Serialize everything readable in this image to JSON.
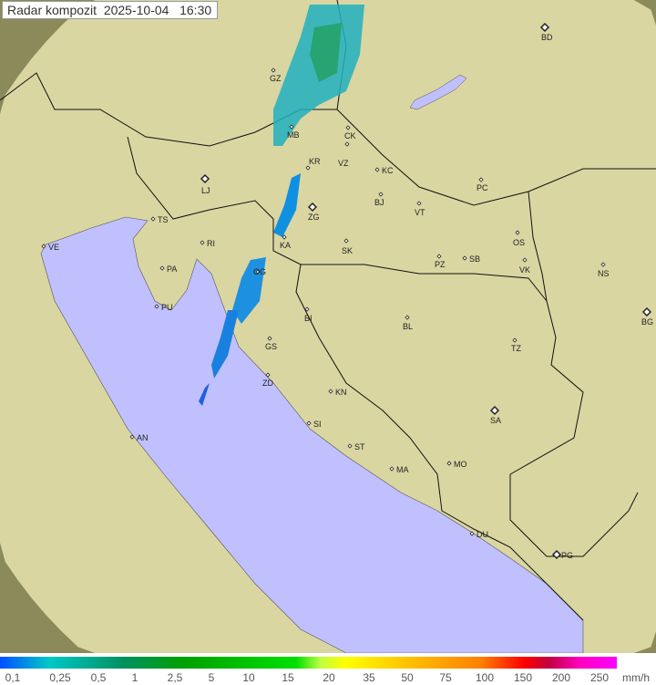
{
  "title": "Radar kompozit  2025-10-04   16:30",
  "legend": {
    "unit": "mm/h",
    "labels": [
      "0,1",
      "0,25",
      "0,5",
      "1",
      "2,5",
      "5",
      "10",
      "15",
      "20",
      "35",
      "50",
      "75",
      "100",
      "150",
      "200",
      "250"
    ]
  },
  "colors": {
    "sea": "#c0c0ff",
    "land": "#d8d8a0",
    "rain_light": "#20b0c0",
    "rain_medium": "#20a060"
  },
  "cities": [
    {
      "code": "GZ",
      "major": false
    },
    {
      "code": "MB",
      "major": false
    },
    {
      "code": "CK",
      "major": false
    },
    {
      "code": "VZ",
      "major": false
    },
    {
      "code": "KR",
      "major": false
    },
    {
      "code": "KC",
      "major": false
    },
    {
      "code": "BJ",
      "major": false
    },
    {
      "code": "VT",
      "major": false
    },
    {
      "code": "PC",
      "major": false
    },
    {
      "code": "BD",
      "major": true
    },
    {
      "code": "LJ",
      "major": true
    },
    {
      "code": "TS",
      "major": false
    },
    {
      "code": "VE",
      "major": false
    },
    {
      "code": "RI",
      "major": false
    },
    {
      "code": "PA",
      "major": false
    },
    {
      "code": "PU",
      "major": false
    },
    {
      "code": "KA",
      "major": false
    },
    {
      "code": "ZG",
      "major": true
    },
    {
      "code": "SK",
      "major": false
    },
    {
      "code": "PZ",
      "major": false
    },
    {
      "code": "SB",
      "major": false
    },
    {
      "code": "OS",
      "major": false
    },
    {
      "code": "VK",
      "major": false
    },
    {
      "code": "NS",
      "major": false
    },
    {
      "code": "BG",
      "major": true
    },
    {
      "code": "OG",
      "major": false
    },
    {
      "code": "BI",
      "major": false
    },
    {
      "code": "BL",
      "major": false
    },
    {
      "code": "TZ",
      "major": false
    },
    {
      "code": "GS",
      "major": false
    },
    {
      "code": "ZD",
      "major": false
    },
    {
      "code": "KN",
      "major": false
    },
    {
      "code": "SA",
      "major": true
    },
    {
      "code": "SI",
      "major": false
    },
    {
      "code": "AN",
      "major": false
    },
    {
      "code": "ST",
      "major": false
    },
    {
      "code": "MA",
      "major": false
    },
    {
      "code": "MO",
      "major": false
    },
    {
      "code": "DU",
      "major": false
    },
    {
      "code": "PG",
      "major": true
    }
  ]
}
